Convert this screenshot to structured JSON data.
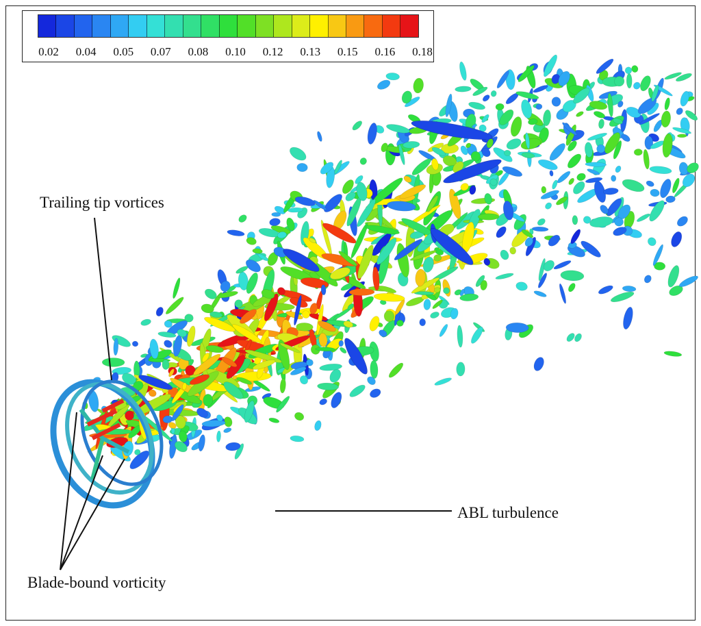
{
  "colorbar": {
    "colors": [
      "#1428dc",
      "#1b46e6",
      "#2264ee",
      "#2a86f2",
      "#2fa8f4",
      "#33cdf2",
      "#34e0d6",
      "#33dfb0",
      "#33df8e",
      "#30e065",
      "#2fdf3c",
      "#52df28",
      "#7ee024",
      "#aee71e",
      "#dcec1a",
      "#fff000",
      "#f8c814",
      "#f99a12",
      "#f86a10",
      "#f33a10",
      "#e61418"
    ],
    "tick_labels": [
      "0.02",
      "0.04",
      "0.05",
      "0.07",
      "0.08",
      "0.10",
      "0.12",
      "0.13",
      "0.15",
      "0.16",
      "0.18"
    ]
  },
  "annotations": {
    "trailing_tip_vortices": "Trailing tip vortices",
    "abl_turbulence": "ABL turbulence",
    "blade_bound_vorticity": "Blade-bound vorticity"
  }
}
